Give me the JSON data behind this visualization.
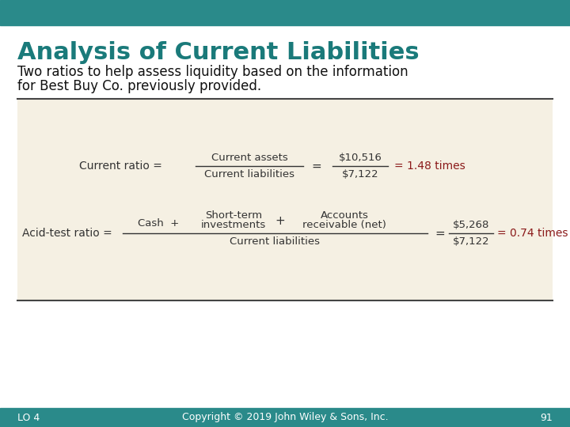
{
  "title": "Analysis of Current Liabilities",
  "subtitle_line1": "Two ratios to help assess liquidity based on the information",
  "subtitle_line2": "for Best Buy Co. previously provided.",
  "title_color": "#1a7a7a",
  "header_bar_color": "#2a8a8a",
  "bg_color": "#ffffff",
  "box_bg_color": "#f5f0e3",
  "box_border_color": "#888866",
  "footer_text": "Copyright © 2019 John Wiley & Sons, Inc.",
  "footer_lo": "LO 4",
  "footer_page": "91",
  "current_ratio_label": "Current ratio =",
  "current_ratio_num": "Current assets",
  "current_ratio_den": "Current liabilities",
  "current_ratio_num_val": "$10,516",
  "current_ratio_den_val": "$7,122",
  "current_ratio_result": "= 1.48 times",
  "acid_label": "Acid-test ratio =",
  "acid_cash": "Cash  +",
  "acid_num_mid_top": "Short-term",
  "acid_num_mid_bot": "investments",
  "acid_plus": "+",
  "acid_num_right_top": "Accounts",
  "acid_num_right_bot": "receivable (net)",
  "acid_den": "Current liabilities",
  "acid_num_val": "$5,268",
  "acid_den_val": "$7,122",
  "acid_result": "= 0.74 times",
  "result_color": "#8b1a1a",
  "text_color": "#333333",
  "subtitle_color": "#111111"
}
